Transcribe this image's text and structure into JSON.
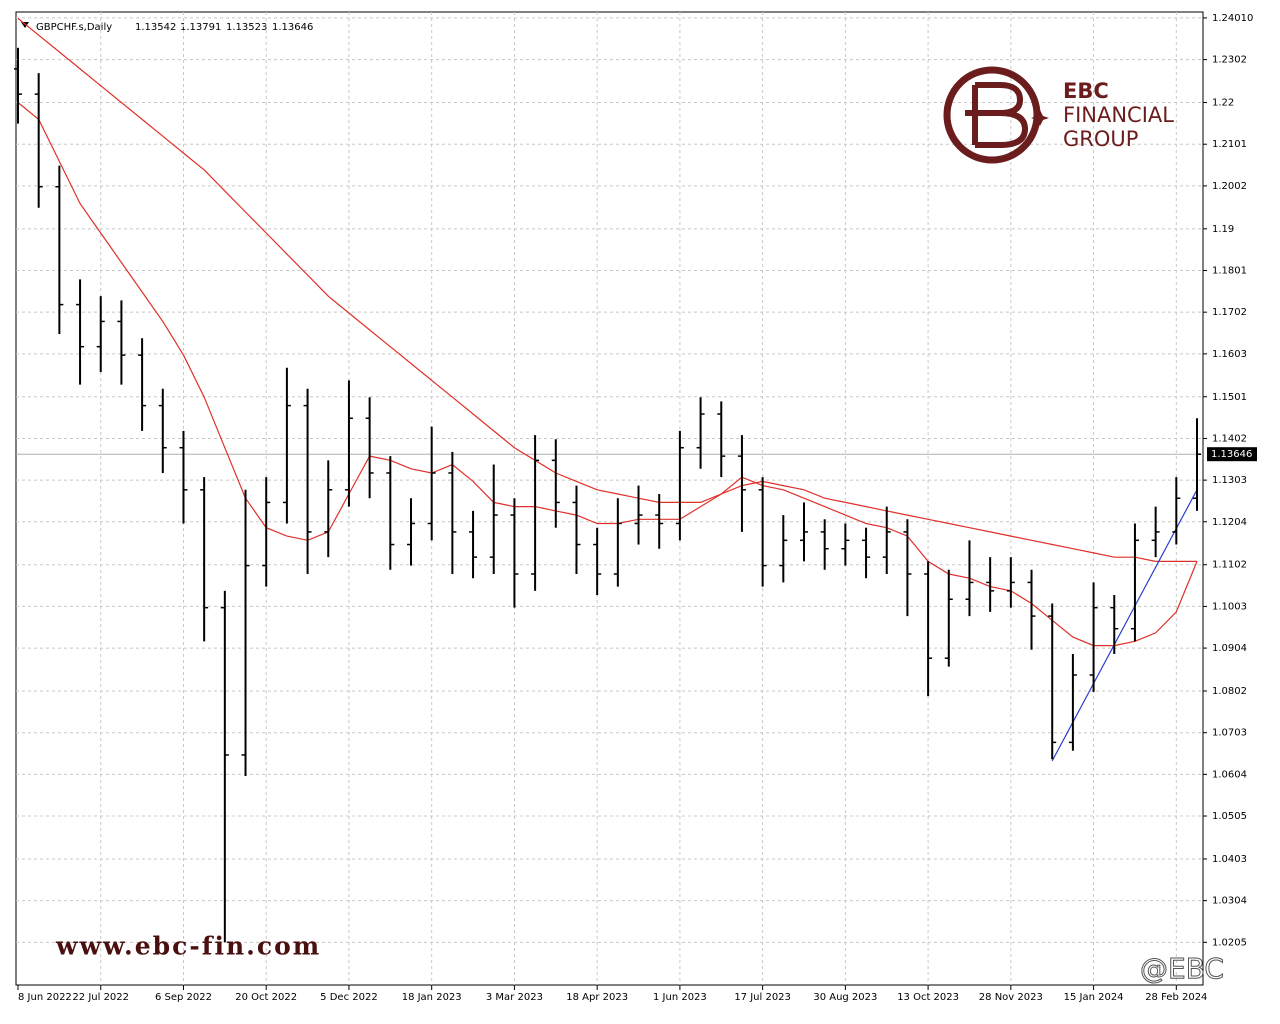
{
  "chart_data": {
    "type": "ohlc",
    "title": "GBPCHF.s,Daily",
    "header_values": [
      1.13542,
      1.13791,
      1.13523,
      1.13646
    ],
    "categories": [
      "8 Jun 2022",
      null,
      null,
      null,
      "22 Jul 2022",
      null,
      null,
      null,
      "6 Sep 2022",
      null,
      null,
      null,
      "20 Oct 2022",
      null,
      null,
      null,
      "5 Dec 2022",
      null,
      null,
      null,
      "18 Jan 2023",
      null,
      null,
      null,
      "3 Mar 2023",
      null,
      null,
      null,
      "18 Apr 2023",
      null,
      null,
      null,
      "1 Jun 2023",
      null,
      null,
      null,
      "17 Jul 2023",
      null,
      null,
      null,
      "30 Aug 2023",
      null,
      null,
      null,
      "13 Oct 2023",
      null,
      null,
      null,
      "28 Nov 2023",
      null,
      null,
      null,
      "15 Jan 2024",
      null,
      null,
      null,
      "28 Feb 2024",
      null
    ],
    "open": [
      1.228,
      1.222,
      1.2,
      1.172,
      1.162,
      1.168,
      1.16,
      1.148,
      1.138,
      1.128,
      1.1,
      1.065,
      1.11,
      1.125,
      1.148,
      1.118,
      1.128,
      1.145,
      1.132,
      1.115,
      1.12,
      1.132,
      1.118,
      1.112,
      1.122,
      1.108,
      1.135,
      1.125,
      1.115,
      1.108,
      1.12,
      1.122,
      1.12,
      1.138,
      1.146,
      1.136,
      1.128,
      1.11,
      1.116,
      1.118,
      1.114,
      1.116,
      1.112,
      1.118,
      1.108,
      1.088,
      1.102,
      1.106,
      1.104,
      1.106,
      1.098,
      1.068,
      1.084,
      1.1,
      1.095,
      1.116,
      1.118,
      1.126
    ],
    "high": [
      1.233,
      1.227,
      1.205,
      1.178,
      1.174,
      1.173,
      1.164,
      1.152,
      1.142,
      1.131,
      1.104,
      1.128,
      1.131,
      1.157,
      1.152,
      1.135,
      1.154,
      1.15,
      1.136,
      1.126,
      1.143,
      1.137,
      1.123,
      1.134,
      1.126,
      1.141,
      1.14,
      1.129,
      1.119,
      1.126,
      1.129,
      1.127,
      1.142,
      1.15,
      1.149,
      1.141,
      1.131,
      1.122,
      1.125,
      1.121,
      1.12,
      1.119,
      1.124,
      1.121,
      1.111,
      1.109,
      1.116,
      1.112,
      1.112,
      1.109,
      1.101,
      1.089,
      1.106,
      1.103,
      1.12,
      1.124,
      1.131,
      1.145
    ],
    "low": [
      1.215,
      1.195,
      1.165,
      1.153,
      1.156,
      1.153,
      1.142,
      1.132,
      1.12,
      1.092,
      1.0205,
      1.06,
      1.105,
      1.12,
      1.108,
      1.112,
      1.124,
      1.126,
      1.109,
      1.11,
      1.116,
      1.108,
      1.107,
      1.108,
      1.1,
      1.104,
      1.119,
      1.108,
      1.103,
      1.105,
      1.115,
      1.114,
      1.116,
      1.133,
      1.131,
      1.118,
      1.105,
      1.106,
      1.111,
      1.109,
      1.11,
      1.107,
      1.108,
      1.098,
      1.079,
      1.086,
      1.098,
      1.099,
      1.1,
      1.09,
      1.064,
      1.066,
      1.08,
      1.089,
      1.092,
      1.112,
      1.115,
      1.123
    ],
    "close": [
      1.222,
      1.2,
      1.172,
      1.162,
      1.168,
      1.16,
      1.148,
      1.138,
      1.128,
      1.1,
      1.065,
      1.11,
      1.125,
      1.148,
      1.118,
      1.128,
      1.145,
      1.132,
      1.115,
      1.12,
      1.132,
      1.118,
      1.112,
      1.122,
      1.108,
      1.135,
      1.125,
      1.115,
      1.108,
      1.12,
      1.122,
      1.12,
      1.138,
      1.146,
      1.136,
      1.128,
      1.11,
      1.116,
      1.118,
      1.114,
      1.116,
      1.112,
      1.118,
      1.108,
      1.088,
      1.102,
      1.106,
      1.104,
      1.106,
      1.098,
      1.068,
      1.084,
      1.1,
      1.095,
      1.116,
      1.118,
      1.126,
      1.13646
    ],
    "color": "#000000",
    "series": [
      {
        "color": "#e0302a",
        "values": [
          1.24,
          1.236,
          1.232,
          1.228,
          1.224,
          1.22,
          1.216,
          1.212,
          1.208,
          1.204,
          1.199,
          1.194,
          1.189,
          1.184,
          1.179,
          1.174,
          1.17,
          1.166,
          1.162,
          1.158,
          1.154,
          1.15,
          1.146,
          1.142,
          1.138,
          1.135,
          1.132,
          1.13,
          1.128,
          1.127,
          1.126,
          1.125,
          1.125,
          1.125,
          1.127,
          1.129,
          1.13,
          1.129,
          1.128,
          1.126,
          1.125,
          1.124,
          1.123,
          1.122,
          1.121,
          1.12,
          1.119,
          1.118,
          1.117,
          1.116,
          1.115,
          1.114,
          1.113,
          1.112,
          1.112,
          1.111,
          1.111,
          1.111
        ]
      },
      {
        "color": "#e0302a",
        "values": [
          1.22,
          1.216,
          1.206,
          1.196,
          1.189,
          1.182,
          1.175,
          1.168,
          1.16,
          1.15,
          1.138,
          1.126,
          1.119,
          1.117,
          1.116,
          1.118,
          1.127,
          1.136,
          1.135,
          1.133,
          1.132,
          1.134,
          1.13,
          1.125,
          1.124,
          1.124,
          1.123,
          1.122,
          1.12,
          1.12,
          1.121,
          1.121,
          1.121,
          1.124,
          1.127,
          1.131,
          1.129,
          1.128,
          1.126,
          1.124,
          1.122,
          1.12,
          1.119,
          1.117,
          1.111,
          1.108,
          1.107,
          1.105,
          1.104,
          1.101,
          1.097,
          1.093,
          1.091,
          1.091,
          1.092,
          1.094,
          1.099,
          1.111
        ]
      },
      {
        "color": "#2a3fd0",
        "values": [
          null,
          null,
          null,
          null,
          null,
          null,
          null,
          null,
          null,
          null,
          null,
          null,
          null,
          null,
          null,
          null,
          null,
          null,
          null,
          null,
          null,
          null,
          null,
          null,
          null,
          null,
          null,
          null,
          null,
          null,
          null,
          null,
          null,
          null,
          null,
          null,
          null,
          null,
          null,
          null,
          null,
          null,
          null,
          null,
          null,
          null,
          null,
          null,
          null,
          null,
          1.0636,
          1.0728,
          1.082,
          1.0912,
          1.1004,
          1.1096,
          1.1188,
          1.128
        ]
      }
    ],
    "last_price": 1.13646,
    "ylim": [
      1.01036,
      1.24151
    ],
    "yticks": [
      {
        "value": 1.2401,
        "label": "1.24010"
      },
      1.2302,
      1.22,
      1.2101,
      1.2002,
      1.19,
      1.1801,
      1.1702,
      1.1603,
      1.1501,
      1.1402,
      1.1303,
      1.1204,
      1.1102,
      1.1003,
      1.0904,
      1.0802,
      1.0703,
      1.0604,
      1.0505,
      1.0403,
      1.0304,
      1.0205
    ],
    "grid": true,
    "website": "www.ebc-fin.com",
    "logo": {
      "line1": "EBC",
      "line2": "FINANCIAL",
      "line3": "GROUP"
    },
    "watermark": "@EBC"
  }
}
